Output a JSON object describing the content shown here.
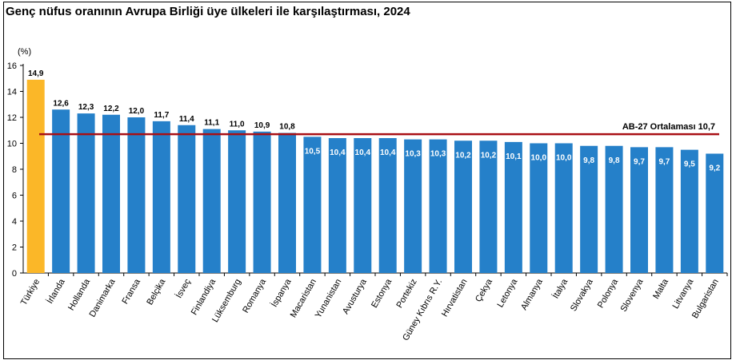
{
  "title": "Genç nüfus oranının Avrupa Birliği üye ülkeleri ile karşılaştırması, 2024",
  "colors": {
    "bar": "#2580c9",
    "highlight": "#fbb728",
    "average_line": "#a80f14",
    "axis": "#000000"
  },
  "chart_data": {
    "type": "bar",
    "title": "Genç nüfus oranının Avrupa Birliği üye ülkeleri ile karşılaştırması, 2024",
    "ylabel": "(%)",
    "xlabel": "",
    "ylim": [
      0,
      16
    ],
    "yticks": [
      0,
      2,
      4,
      6,
      8,
      10,
      12,
      14,
      16
    ],
    "grid": false,
    "categories": [
      "Türkiye",
      "İrlanda",
      "Hollanda",
      "Danimarka",
      "Fransa",
      "Belçika",
      "İsveç",
      "Finlandiya",
      "Lüksemburg",
      "Romanya",
      "İspanya",
      "Macaristan",
      "Yunanistan",
      "Avusturya",
      "Estonya",
      "Portekiz",
      "Güney Kıbrıs R.Y.",
      "Hırvatistan",
      "Çekya",
      "Letonya",
      "Almanya",
      "İtalya",
      "Slovakya",
      "Polonya",
      "Slovenya",
      "Malta",
      "Litvanya",
      "Bulgaristan"
    ],
    "values": [
      14.9,
      12.6,
      12.3,
      12.2,
      12.0,
      11.7,
      11.4,
      11.1,
      11.0,
      10.9,
      10.8,
      10.5,
      10.4,
      10.4,
      10.4,
      10.3,
      10.3,
      10.2,
      10.2,
      10.1,
      10.0,
      10.0,
      9.8,
      9.8,
      9.7,
      9.7,
      9.5,
      9.2
    ],
    "value_labels": [
      "14,9",
      "12,6",
      "12,3",
      "12,2",
      "12,0",
      "11,7",
      "11,4",
      "11,1",
      "11,0",
      "10,9",
      "10,8",
      "10,5",
      "10,4",
      "10,4",
      "10,4",
      "10,3",
      "10,3",
      "10,2",
      "10,2",
      "10,1",
      "10,0",
      "10,0",
      "9,8",
      "9,8",
      "9,7",
      "9,7",
      "9,5",
      "9,2"
    ],
    "highlight_category": "Türkiye",
    "reference_line": {
      "value": 10.7,
      "label": "AB-27 Ortalaması",
      "value_label": "10,7"
    }
  }
}
